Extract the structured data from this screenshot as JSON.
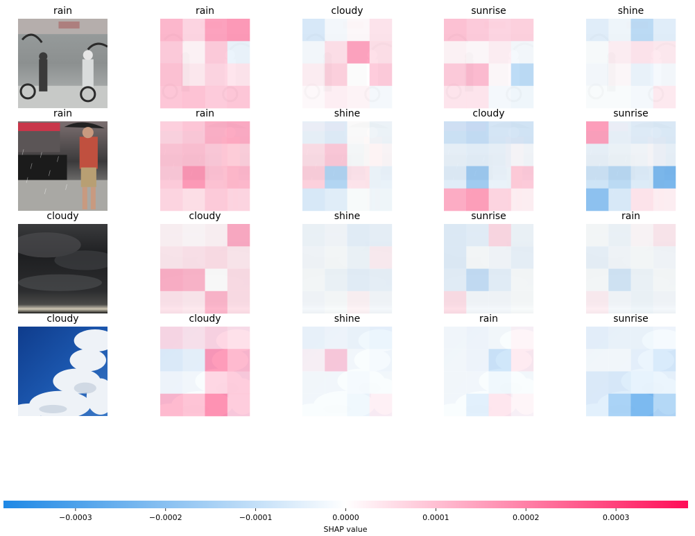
{
  "chart_data": {
    "type": "heatmap",
    "xlabel": "SHAP value",
    "colorbar": {
      "range": [
        -0.00038,
        0.00038
      ],
      "ticks": [
        -0.0003,
        -0.0002,
        -0.0001,
        0.0,
        0.0001,
        0.0002,
        0.0003
      ],
      "tick_labels": [
        "−0.0003",
        "−0.0002",
        "−0.0001",
        "0.0000",
        "0.0001",
        "0.0002",
        "0.0003"
      ],
      "colors": {
        "negative": "#1e88e5",
        "neutral": "#ffffff",
        "positive": "#ff0d57"
      }
    },
    "rows": [
      {
        "input_label": "rain",
        "input_scene": "rain-street",
        "panels": [
          {
            "label": "rain",
            "grid": [
              [
                0.00014,
                8e-05,
                0.00018,
                0.0002
              ],
              [
                0.0001,
                2e-05,
                0.0001,
                -4e-05
              ],
              [
                0.00012,
                4e-05,
                8e-05,
                5e-05
              ],
              [
                0.00011,
                0.00012,
                0.0001,
                0.00011
              ]
            ]
          },
          {
            "label": "cloudy",
            "grid": [
              [
                -8e-05,
                -2e-05,
                1e-05,
                5e-05
              ],
              [
                -2e-05,
                6e-05,
                0.00018,
                6e-05
              ],
              [
                3e-05,
                9e-05,
                0.0,
                0.0001
              ],
              [
                1e-05,
                3e-05,
                2e-05,
                -2e-05
              ]
            ]
          },
          {
            "label": "sunrise",
            "grid": [
              [
                0.00012,
                0.0001,
                8e-05,
                9e-05
              ],
              [
                2e-05,
                1e-05,
                3e-05,
                -2e-05
              ],
              [
                0.0001,
                0.00013,
                1e-05,
                -0.00014
              ],
              [
                5e-05,
                5e-05,
                -2e-05,
                -3e-05
              ]
            ]
          },
          {
            "label": "shine",
            "grid": [
              [
                -6e-05,
                -3e-05,
                -0.00014,
                -6e-05
              ],
              [
                -1e-05,
                3e-05,
                5e-05,
                4e-05
              ],
              [
                -2e-05,
                1e-05,
                -4e-05,
                -2e-05
              ],
              [
                -1e-05,
                -1e-05,
                -2e-05,
                4e-05
              ]
            ]
          }
        ]
      },
      {
        "input_label": "rain",
        "input_scene": "rain-person",
        "panels": [
          {
            "label": "rain",
            "grid": [
              [
                8e-05,
                0.0001,
                0.00015,
                0.00016
              ],
              [
                0.00011,
                0.00012,
                0.0001,
                9e-05
              ],
              [
                0.0001,
                0.0002,
                0.00012,
                0.00014
              ],
              [
                8e-05,
                6e-05,
                0.0001,
                8e-05
              ]
            ]
          },
          {
            "label": "shine",
            "grid": [
              [
                -4e-05,
                -6e-05,
                0.0,
                -3e-05
              ],
              [
                6e-05,
                0.0001,
                -1e-05,
                1e-05
              ],
              [
                9e-05,
                -0.00016,
                5e-05,
                -4e-05
              ],
              [
                -8e-05,
                -6e-05,
                -1e-05,
                -3e-05
              ]
            ]
          },
          {
            "label": "cloudy",
            "grid": [
              [
                -0.0001,
                -0.00012,
                -8e-05,
                -9e-05
              ],
              [
                -4e-05,
                -5e-05,
                -4e-05,
                -2e-05
              ],
              [
                -6e-05,
                -0.0002,
                -4e-05,
                0.0001
              ],
              [
                0.00016,
                0.00019,
                8e-05,
                3e-05
              ]
            ]
          },
          {
            "label": "sunrise",
            "grid": [
              [
                0.00018,
                -4e-05,
                -6e-05,
                -7e-05
              ],
              [
                -4e-05,
                -3e-05,
                -2e-05,
                -4e-05
              ],
              [
                -0.0001,
                -0.00014,
                -7e-05,
                -0.00028
              ],
              [
                -0.00024,
                -8e-05,
                5e-05,
                3e-05
              ]
            ]
          }
        ]
      },
      {
        "input_label": "cloudy",
        "input_scene": "storm-clouds",
        "panels": [
          {
            "label": "cloudy",
            "grid": [
              [
                2e-05,
                1e-05,
                2e-05,
                0.00016
              ],
              [
                4e-05,
                5e-05,
                6e-05,
                4e-05
              ],
              [
                0.00015,
                0.00014,
                0.0,
                6e-05
              ],
              [
                5e-05,
                4e-05,
                0.00014,
                6e-05
              ]
            ]
          },
          {
            "label": "shine",
            "grid": [
              [
                -3e-05,
                -2e-05,
                -5e-05,
                -4e-05
              ],
              [
                -2e-05,
                -1e-05,
                -3e-05,
                3e-05
              ],
              [
                -1e-05,
                -3e-05,
                -5e-05,
                -4e-05
              ],
              [
                -2e-05,
                -1e-05,
                2e-05,
                -2e-05
              ]
            ]
          },
          {
            "label": "sunrise",
            "grid": [
              [
                -6e-05,
                -5e-05,
                7e-05,
                -3e-05
              ],
              [
                -6e-05,
                -1e-05,
                -2e-05,
                -4e-05
              ],
              [
                -5e-05,
                -0.00012,
                -5e-05,
                -1e-05
              ],
              [
                6e-05,
                -2e-05,
                -2e-05,
                -1e-05
              ]
            ]
          },
          {
            "label": "rain",
            "grid": [
              [
                -1e-05,
                -3e-05,
                1e-05,
                4e-05
              ],
              [
                -4e-05,
                -2e-05,
                -1e-05,
                -2e-05
              ],
              [
                -1e-05,
                -9e-05,
                -3e-05,
                -1e-05
              ],
              [
                3e-05,
                -2e-05,
                -3e-05,
                -2e-05
              ]
            ]
          }
        ]
      },
      {
        "input_label": "cloudy",
        "input_scene": "blue-sky-clouds",
        "panels": [
          {
            "label": "cloudy",
            "grid": [
              [
                7e-05,
                5e-05,
                8e-05,
                6e-05
              ],
              [
                -6e-05,
                -4e-05,
                0.0002,
                0.00014
              ],
              [
                -2e-05,
                -1e-05,
                8e-05,
                0.0001
              ],
              [
                0.00014,
                0.00012,
                0.00022,
                0.0001
              ]
            ]
          },
          {
            "label": "shine",
            "grid": [
              [
                -3e-05,
                -2e-05,
                -3e-05,
                -4e-05
              ],
              [
                2e-05,
                0.0001,
                -1e-05,
                -2e-05
              ],
              [
                -1e-05,
                -1e-05,
                -2e-05,
                -1e-05
              ],
              [
                -1e-05,
                -1e-05,
                -3e-05,
                3e-05
              ]
            ]
          },
          {
            "label": "rain",
            "grid": [
              [
                -1e-05,
                -2e-05,
                -1e-05,
                2e-05
              ],
              [
                -1e-05,
                -2e-05,
                -0.0001,
                4e-05
              ],
              [
                -1e-05,
                -1e-05,
                -3e-05,
                -1e-05
              ],
              [
                -1e-05,
                -6e-05,
                5e-05,
                2e-05
              ]
            ]
          },
          {
            "label": "sunrise",
            "grid": [
              [
                -4e-05,
                -3e-05,
                -3e-05,
                -2e-05
              ],
              [
                -1e-05,
                -1e-05,
                -4e-05,
                -8e-05
              ],
              [
                -6e-05,
                -7e-05,
                -5e-05,
                -4e-05
              ],
              [
                -6e-05,
                -0.00018,
                -0.00028,
                -0.00016
              ]
            ]
          }
        ]
      }
    ]
  }
}
